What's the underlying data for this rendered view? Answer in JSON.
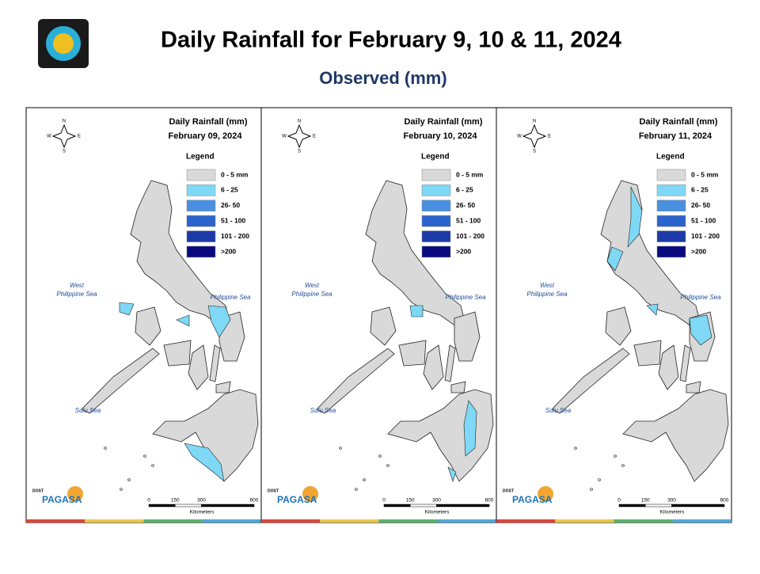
{
  "header": {
    "title": "Daily Rainfall for February 9, 10 & 11, 2024",
    "subtitle": "Observed (mm)"
  },
  "panels": [
    {
      "title": "Daily Rainfall (mm)",
      "date": "February 09, 2024",
      "legend_title": "Legend",
      "legend": [
        {
          "label": "0 - 5 mm",
          "color": "#d9d9d9"
        },
        {
          "label": "6 - 25",
          "color": "#7fd8f5"
        },
        {
          "label": "26- 50",
          "color": "#4a90e0"
        },
        {
          "label": "51 - 100",
          "color": "#2a64cc"
        },
        {
          "label": "101 - 200",
          "color": "#1c3aa8"
        },
        {
          "label": ">200",
          "color": "#0a0a80"
        }
      ],
      "seas": [
        [
          "West",
          "Philippine Sea"
        ],
        [
          "Philippine Sea"
        ],
        [
          "Sulu Sea"
        ]
      ],
      "scale": [
        0,
        150,
        300,
        600
      ],
      "scale_unit": "Kilometers",
      "compass": [
        "N",
        "W",
        "E",
        "S"
      ],
      "logo": [
        "DOST",
        "PAGASA"
      ]
    },
    {
      "title": "Daily Rainfall (mm)",
      "date": "February 10, 2024",
      "legend_title": "Legend",
      "legend": [
        {
          "label": "0 - 5 mm",
          "color": "#d9d9d9"
        },
        {
          "label": "6 - 25",
          "color": "#7fd8f5"
        },
        {
          "label": "26- 50",
          "color": "#4a90e0"
        },
        {
          "label": "51 - 100",
          "color": "#2a64cc"
        },
        {
          "label": "101 - 200",
          "color": "#1c3aa8"
        },
        {
          "label": ">200",
          "color": "#0a0a80"
        }
      ],
      "seas": [
        [
          "West",
          "Philippine Sea"
        ],
        [
          "Philippine Sea"
        ],
        [
          "Sulu Sea"
        ]
      ],
      "scale": [
        0,
        150,
        300,
        600
      ],
      "scale_unit": "Kilometers",
      "compass": [
        "N",
        "W",
        "E",
        "S"
      ],
      "logo": [
        "DOST",
        "PAGASA"
      ]
    },
    {
      "title": "Daily Rainfall (mm)",
      "date": "February 11, 2024",
      "legend_title": "Legend",
      "legend": [
        {
          "label": "0 - 5 mm",
          "color": "#d9d9d9"
        },
        {
          "label": "6 - 25",
          "color": "#7fd8f5"
        },
        {
          "label": "26- 50",
          "color": "#4a90e0"
        },
        {
          "label": "51 - 100",
          "color": "#2a64cc"
        },
        {
          "label": "101 - 200",
          "color": "#1c3aa8"
        },
        {
          "label": ">200",
          "color": "#0a0a80"
        }
      ],
      "seas": [
        [
          "West",
          "Philippine Sea"
        ],
        [
          "Philippine Sea"
        ],
        [
          "Sulu Sea"
        ]
      ],
      "scale": [
        0,
        150,
        300,
        600
      ],
      "scale_unit": "Kilometers",
      "compass": [
        "N",
        "W",
        "E",
        "S"
      ],
      "logo": [
        "DOST",
        "PAGASA"
      ]
    }
  ]
}
